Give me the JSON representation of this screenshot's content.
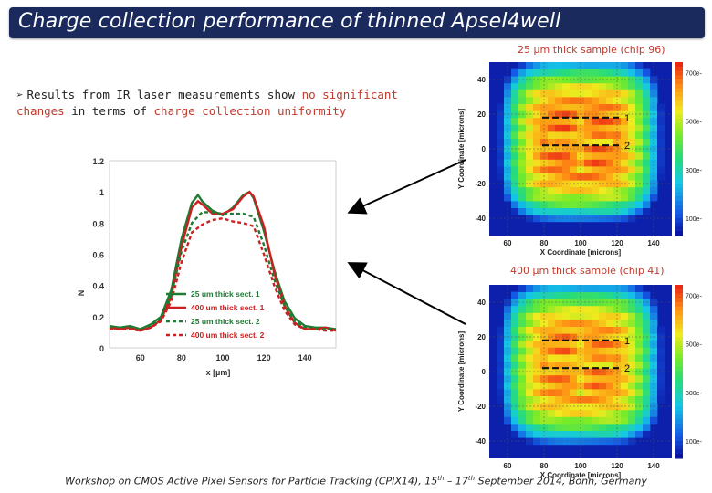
{
  "slide": {
    "title": "Charge collection performance of thinned Apsel4well",
    "bullet_parts": [
      {
        "text": "Results from IR laser measurements show ",
        "color": "#222222"
      },
      {
        "text": "no significant changes",
        "color": "#c0392b"
      },
      {
        "text": " in terms of ",
        "color": "#222222"
      },
      {
        "text": "charge collection uniformity",
        "color": "#c0392b"
      }
    ],
    "caption_top": "25 µm thick sample (chip 96)",
    "caption_bottom": "400 µm thick sample (chip 41)",
    "footer_parts": [
      {
        "text": "Workshop on CMOS Active Pixel Sensors for Particle Tracking (CPIX14), 15",
        "sup": false
      },
      {
        "text": "th",
        "sup": true
      },
      {
        "text": " – 17",
        "sup": false
      },
      {
        "text": "th",
        "sup": true
      },
      {
        "text": " September 2014, Bonn, Germany",
        "sup": false
      }
    ]
  },
  "chart_data": [
    {
      "type": "line",
      "xlabel": "x [µm]",
      "ylabel": "N",
      "xlim": [
        45,
        155
      ],
      "ylim": [
        0,
        1.2
      ],
      "xticks": [
        60,
        80,
        100,
        120,
        140
      ],
      "yticks": [
        0,
        0.2,
        0.4,
        0.6,
        0.8,
        1,
        1.2
      ],
      "legend_placement": "bottom-right",
      "series": [
        {
          "name": "25 um thick sect. 1",
          "color": "#1e7b34",
          "dash": "solid",
          "x": [
            45,
            50,
            55,
            60,
            65,
            70,
            75,
            80,
            85,
            88,
            90,
            95,
            100,
            105,
            110,
            113,
            115,
            120,
            125,
            130,
            135,
            140,
            145,
            150,
            155
          ],
          "y": [
            0.14,
            0.13,
            0.14,
            0.12,
            0.15,
            0.2,
            0.37,
            0.7,
            0.93,
            0.98,
            0.94,
            0.88,
            0.85,
            0.9,
            0.98,
            1.0,
            0.96,
            0.75,
            0.5,
            0.3,
            0.19,
            0.14,
            0.13,
            0.13,
            0.12
          ]
        },
        {
          "name": "400 um thick sect. 1",
          "color": "#cc2020",
          "dash": "solid",
          "x": [
            45,
            50,
            55,
            60,
            65,
            70,
            75,
            80,
            85,
            88,
            90,
            95,
            100,
            105,
            110,
            113,
            115,
            120,
            125,
            130,
            135,
            140,
            145,
            150,
            155
          ],
          "y": [
            0.13,
            0.12,
            0.13,
            0.11,
            0.13,
            0.18,
            0.33,
            0.65,
            0.9,
            0.94,
            0.92,
            0.86,
            0.86,
            0.89,
            0.97,
            1.0,
            0.97,
            0.78,
            0.48,
            0.27,
            0.16,
            0.12,
            0.12,
            0.13,
            0.11
          ]
        },
        {
          "name": "25 um thick sect. 2",
          "color": "#1e7b34",
          "dash": "dashed",
          "x": [
            45,
            50,
            55,
            60,
            65,
            70,
            75,
            80,
            85,
            90,
            95,
            100,
            105,
            110,
            115,
            120,
            125,
            130,
            135,
            140,
            145,
            150,
            155
          ],
          "y": [
            0.13,
            0.12,
            0.13,
            0.12,
            0.14,
            0.19,
            0.34,
            0.62,
            0.8,
            0.87,
            0.87,
            0.86,
            0.86,
            0.86,
            0.84,
            0.66,
            0.44,
            0.27,
            0.17,
            0.13,
            0.12,
            0.12,
            0.12
          ]
        },
        {
          "name": "400 um thick sect. 2",
          "color": "#cc2020",
          "dash": "dashed",
          "x": [
            45,
            50,
            55,
            60,
            65,
            70,
            75,
            80,
            85,
            90,
            95,
            100,
            105,
            110,
            115,
            120,
            125,
            130,
            135,
            140,
            145,
            150,
            155
          ],
          "y": [
            0.12,
            0.12,
            0.12,
            0.11,
            0.13,
            0.17,
            0.3,
            0.55,
            0.74,
            0.79,
            0.82,
            0.83,
            0.81,
            0.8,
            0.78,
            0.6,
            0.4,
            0.24,
            0.15,
            0.12,
            0.12,
            0.11,
            0.11
          ]
        }
      ]
    },
    {
      "type": "heatmap",
      "caption": "25 µm thick sample (chip 96)",
      "xlabel": "X Coordinate [microns]",
      "ylabel": "Y Coordinate [microns]",
      "xlim": [
        50,
        150
      ],
      "ylim": [
        -50,
        50
      ],
      "xticks": [
        60,
        80,
        100,
        120,
        140
      ],
      "yticks": [
        -40,
        -20,
        0,
        20,
        40
      ],
      "colorbar_ticks": [
        "700e-",
        "500e-",
        "300e-",
        "100e-"
      ],
      "grid": true,
      "section_labels": [
        "1",
        "2"
      ]
    },
    {
      "type": "heatmap",
      "caption": "400 µm thick sample (chip 41)",
      "xlabel": "X Coordinate [microns]",
      "ylabel": "Y Coordinate [microns]",
      "xlim": [
        50,
        150
      ],
      "ylim": [
        -50,
        50
      ],
      "xticks": [
        60,
        80,
        100,
        120,
        140
      ],
      "yticks": [
        -40,
        -20,
        0,
        20,
        40
      ],
      "colorbar_ticks": [
        "700e-",
        "500e-",
        "300e-",
        "100e-"
      ],
      "grid": true,
      "section_labels": [
        "1",
        "2"
      ]
    }
  ]
}
